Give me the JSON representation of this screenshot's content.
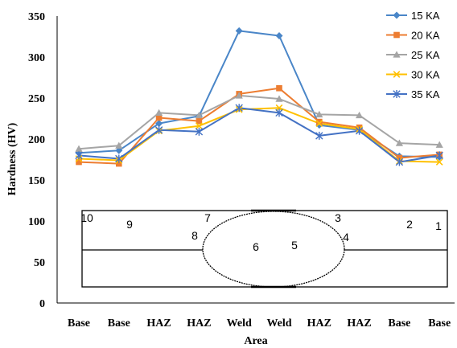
{
  "chart_data": {
    "type": "line",
    "title": "",
    "xlabel": "Area",
    "ylabel": "Hardness (HV)",
    "ylim": [
      0,
      350
    ],
    "yticks": [
      0,
      50,
      100,
      150,
      200,
      250,
      300,
      350
    ],
    "categories": [
      "Base",
      "Base",
      "HAZ",
      "HAZ",
      "Weld",
      "Weld",
      "HAZ",
      "HAZ",
      "Base",
      "Base"
    ],
    "grid": false,
    "legend_position": "right",
    "series": [
      {
        "name": "15 KA",
        "color": "#4a86c8",
        "marker": "diamond",
        "values": [
          183,
          186,
          219,
          228,
          332,
          326,
          217,
          211,
          179,
          178
        ]
      },
      {
        "name": "20 KA",
        "color": "#ed7d31",
        "marker": "square",
        "values": [
          172,
          170,
          226,
          222,
          255,
          262,
          221,
          214,
          177,
          181
        ]
      },
      {
        "name": "25 KA",
        "color": "#a5a5a5",
        "marker": "triangle",
        "values": [
          188,
          192,
          232,
          229,
          253,
          249,
          230,
          229,
          195,
          193
        ]
      },
      {
        "name": "30 KA",
        "color": "#ffc000",
        "marker": "x",
        "values": [
          176,
          174,
          210,
          216,
          236,
          238,
          219,
          212,
          173,
          172
        ]
      },
      {
        "name": "35 KA",
        "color": "#4472c4",
        "marker": "star",
        "values": [
          180,
          176,
          211,
          209,
          238,
          232,
          204,
          210,
          172,
          180
        ]
      }
    ],
    "sketch_labels": [
      "10",
      "9",
      "7",
      "8",
      "6",
      "5",
      "3",
      "4",
      "2",
      "1"
    ]
  }
}
